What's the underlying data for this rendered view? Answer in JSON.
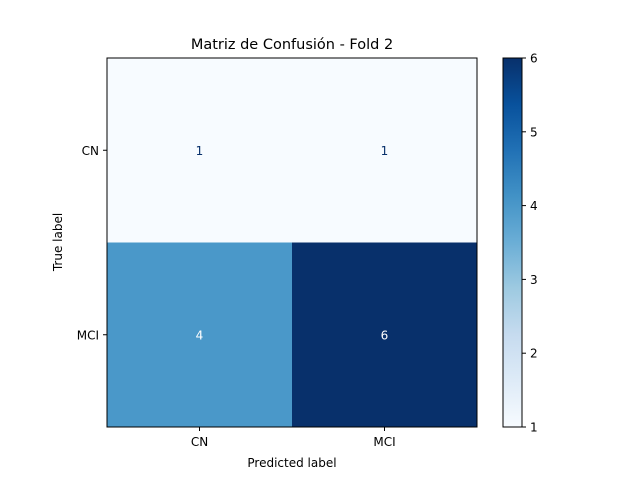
{
  "chart_data": {
    "type": "heatmap",
    "title": "Matriz de Confusión - Fold 2",
    "xlabel": "Predicted label",
    "ylabel": "True label",
    "x_categories": [
      "CN",
      "MCI"
    ],
    "y_categories": [
      "CN",
      "MCI"
    ],
    "values": [
      [
        1,
        1
      ],
      [
        4,
        6
      ]
    ],
    "colormap": "Blues",
    "colorbar": {
      "min": 1,
      "max": 6,
      "ticks": [
        "1",
        "2",
        "3",
        "4",
        "5",
        "6"
      ]
    },
    "colors": {
      "low": "#f7fbff",
      "high": "#08306b",
      "text_dark": "#08306b",
      "text_light": "#ffffff"
    }
  }
}
